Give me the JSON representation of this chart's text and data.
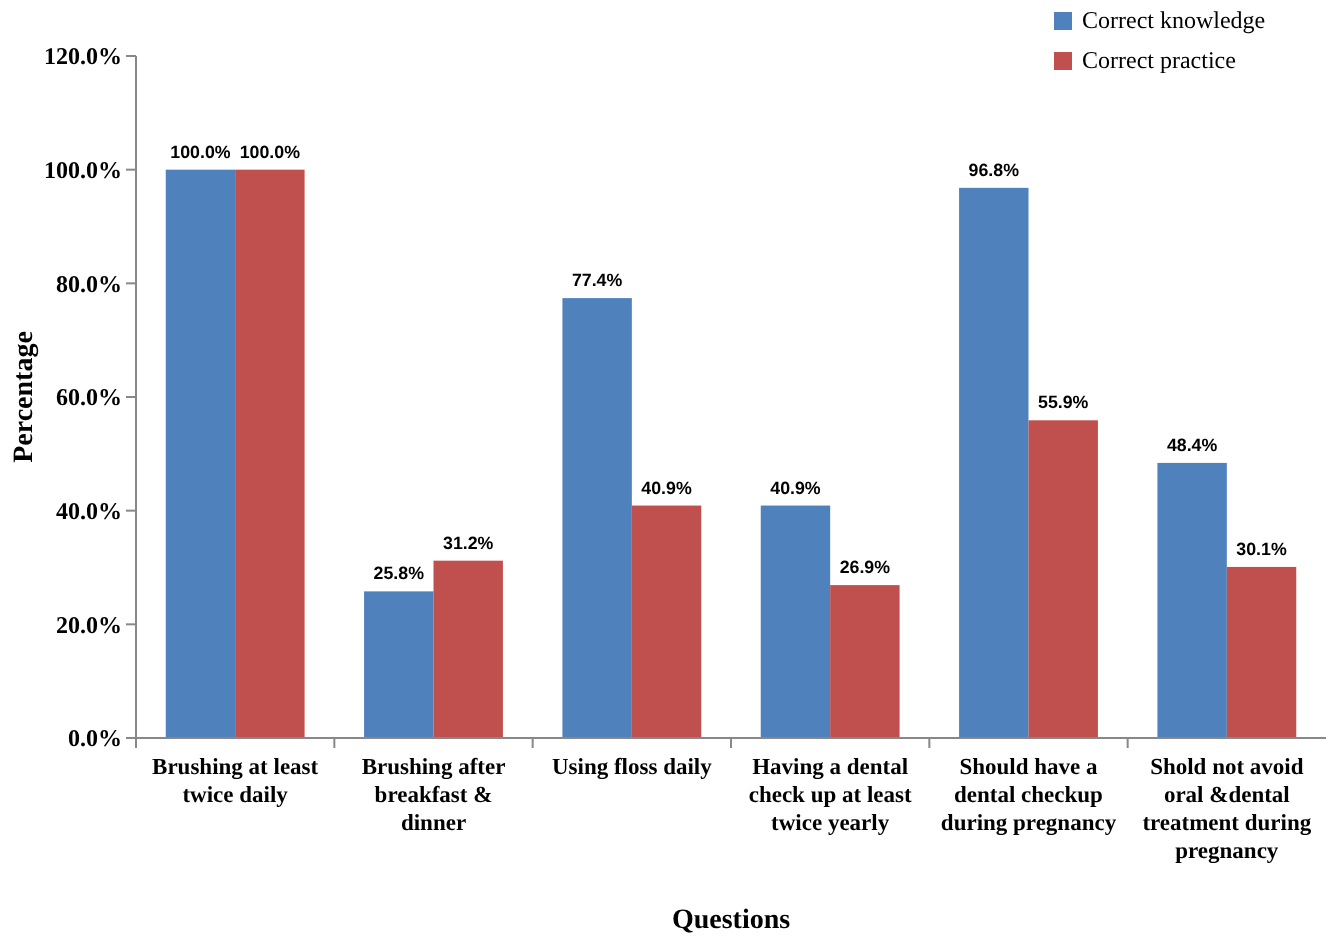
{
  "chart_data": {
    "type": "bar",
    "xlabel": "Questions",
    "ylabel": "Percentage",
    "categories": [
      "Brushing at least twice daily",
      "Brushing after breakfast & dinner",
      "Using floss daily",
      "Having a dental check up at least twice yearly",
      "Should have a dental checkup during pregnancy",
      "Shold not avoid oral &dental treatment during pregnancy"
    ],
    "series": [
      {
        "name": "Correct knowledge",
        "color": "#4f81bd",
        "values": [
          100,
          25.8,
          77.4,
          40.9,
          96.8,
          48.4
        ],
        "value_labels": [
          "100.0%",
          "25.8%",
          "77.4%",
          "40.9%",
          "96.8%",
          "48.4%"
        ]
      },
      {
        "name": "Correct practice",
        "color": "#c0504d",
        "values": [
          100,
          31.2,
          40.9,
          26.9,
          55.9,
          30.1
        ],
        "value_labels": [
          "100.0%",
          "31.2%",
          "40.9%",
          "26.9%",
          "55.9%",
          "30.1%"
        ]
      }
    ],
    "ylim": [
      0,
      120
    ],
    "yticks": [
      {
        "value": 0,
        "label": "0.0%"
      },
      {
        "value": 20,
        "label": "20.0%"
      },
      {
        "value": 40,
        "label": "40.0%"
      },
      {
        "value": 60,
        "label": "60.0%"
      },
      {
        "value": 80,
        "label": "80.0%"
      },
      {
        "value": 100,
        "label": "100.0%"
      },
      {
        "value": 120,
        "label": "120.0%"
      }
    ],
    "legend": "top right",
    "grid": false
  }
}
